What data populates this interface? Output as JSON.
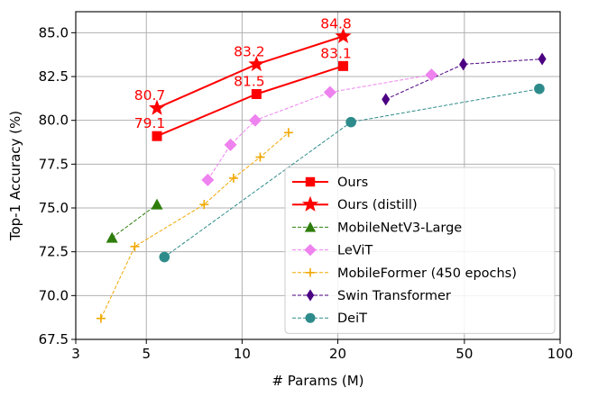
{
  "chart_data": {
    "type": "line",
    "xlabel": "# Params (M)",
    "ylabel": "Top-1 Accuracy (%)",
    "xscale": "log",
    "xlim": [
      3,
      100
    ],
    "ylim": [
      67.5,
      86.2
    ],
    "xticks": [
      3,
      5,
      10,
      20,
      50,
      100
    ],
    "xtick_labels": [
      "3",
      "5",
      "10",
      "20",
      "50",
      "100"
    ],
    "yticks": [
      67.5,
      70.0,
      72.5,
      75.0,
      77.5,
      80.0,
      82.5,
      85.0
    ],
    "ytick_labels": [
      "67.5",
      "70.0",
      "72.5",
      "75.0",
      "77.5",
      "80.0",
      "82.5",
      "85.0"
    ],
    "grid": true,
    "legend_position": "lower-right",
    "series": [
      {
        "name": "Ours",
        "color": "#ff0000",
        "marker": "square",
        "line": "solid",
        "x": [
          5.4,
          11.1,
          20.8
        ],
        "y": [
          79.1,
          81.5,
          83.1
        ],
        "labels": [
          "79.1",
          "81.5",
          "83.1"
        ]
      },
      {
        "name": "Ours (distill)",
        "color": "#ff0000",
        "marker": "star",
        "line": "solid",
        "x": [
          5.4,
          11.1,
          20.8
        ],
        "y": [
          80.7,
          83.2,
          84.8
        ],
        "labels": [
          "80.7",
          "83.2",
          "84.8"
        ]
      },
      {
        "name": "MobileNetV3-Large",
        "color": "#2e7d0b",
        "marker": "triangle",
        "line": "dashed",
        "x": [
          3.9,
          5.4
        ],
        "y": [
          73.3,
          75.2
        ]
      },
      {
        "name": "LeViT",
        "color": "#ee82ee",
        "marker": "diamond",
        "line": "dashed",
        "x": [
          7.8,
          9.2,
          11.0,
          18.9,
          39.4
        ],
        "y": [
          76.6,
          78.6,
          80.0,
          81.6,
          82.6
        ]
      },
      {
        "name": "MobileFormer (450 epochs)",
        "color": "#f0a800",
        "marker": "plus",
        "line": "dashed",
        "x": [
          3.6,
          4.6,
          7.6,
          9.4,
          11.4,
          14.0
        ],
        "y": [
          68.7,
          72.8,
          75.2,
          76.7,
          77.9,
          79.3
        ]
      },
      {
        "name": "Swin Transformer",
        "color": "#4b0082",
        "marker": "thin-diamond",
        "line": "dashed",
        "x": [
          28.3,
          49.6,
          87.8
        ],
        "y": [
          81.2,
          83.2,
          83.5
        ]
      },
      {
        "name": "DeiT",
        "color": "#2e8b8b",
        "marker": "circle",
        "line": "dashed",
        "x": [
          5.7,
          22.0,
          86.0
        ],
        "y": [
          72.2,
          79.9,
          81.8
        ]
      }
    ]
  }
}
